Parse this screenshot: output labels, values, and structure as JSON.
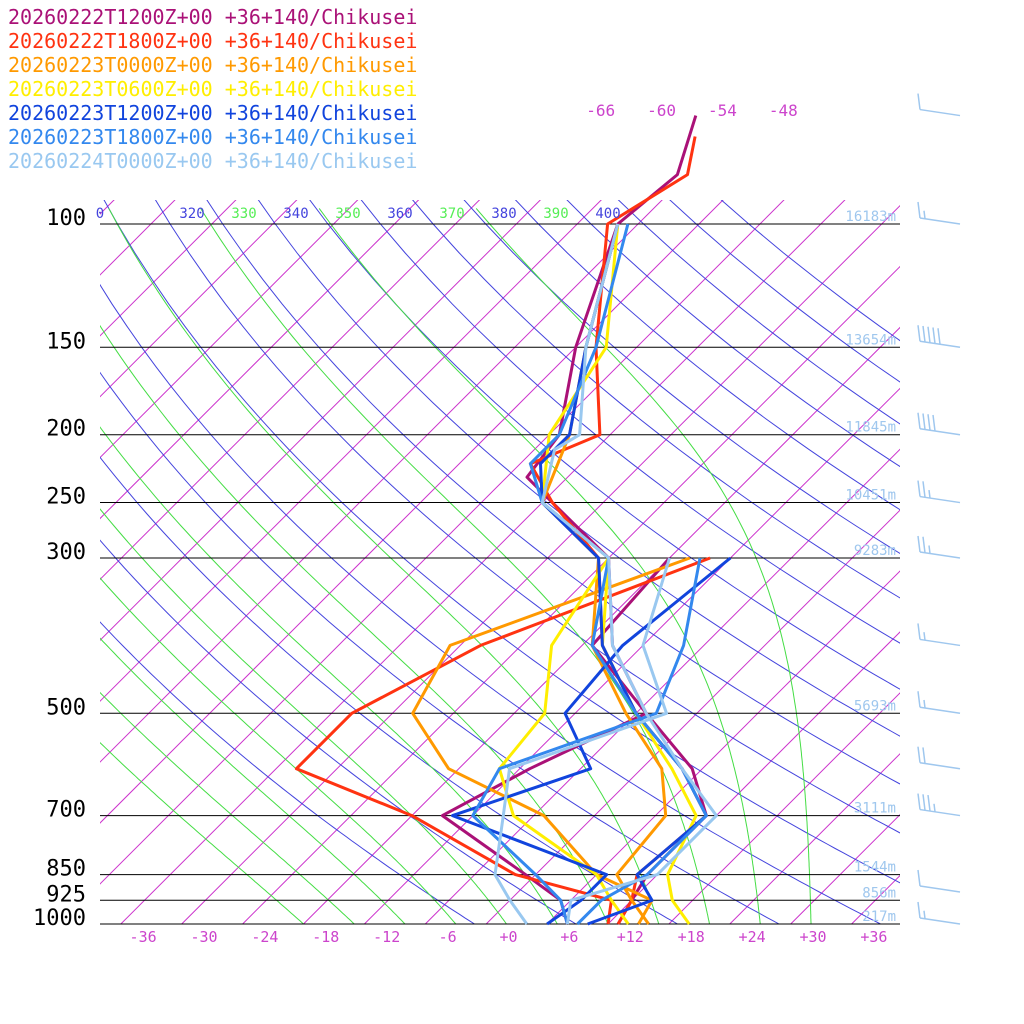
{
  "chart_data": {
    "type": "line",
    "title": "",
    "xlabel": "",
    "ylabel": "",
    "grid": true,
    "legend_position": "top-left",
    "pressure_levels": [
      100,
      150,
      200,
      250,
      300,
      500,
      700,
      850,
      925,
      1000
    ],
    "pressure_labels": [
      "100",
      "150",
      "200",
      "250",
      "300",
      "500",
      "700",
      "850",
      "925",
      "1000"
    ],
    "temperature_ticks": [
      "-36",
      "-30",
      "-24",
      "-18",
      "-12",
      "-6",
      "+0",
      "+6",
      "+12",
      "+18",
      "+24",
      "+30",
      "+36"
    ],
    "isotherm_labels": [
      "-66",
      "-60",
      "-54",
      "-48"
    ],
    "theta_labels": [
      {
        "text": "0",
        "kind": "dry"
      },
      {
        "text": "320",
        "kind": "dry"
      },
      {
        "text": "330",
        "kind": "moist"
      },
      {
        "text": "340",
        "kind": "dry"
      },
      {
        "text": "350",
        "kind": "moist"
      },
      {
        "text": "360",
        "kind": "dry"
      },
      {
        "text": "370",
        "kind": "moist"
      },
      {
        "text": "380",
        "kind": "dry"
      },
      {
        "text": "390",
        "kind": "moist"
      },
      {
        "text": "400",
        "kind": "dry"
      }
    ],
    "height_labels": [
      {
        "p": 100,
        "text": "16183m"
      },
      {
        "p": 150,
        "text": "13654m"
      },
      {
        "p": 200,
        "text": "11845m"
      },
      {
        "p": 250,
        "text": "10451m"
      },
      {
        "p": 300,
        "text": "9283m"
      },
      {
        "p": 500,
        "text": "5693m"
      },
      {
        "p": 700,
        "text": "3111m"
      },
      {
        "p": 850,
        "text": "1544m"
      },
      {
        "p": 925,
        "text": "856m"
      },
      {
        "p": 1000,
        "text": "217m"
      }
    ],
    "series": [
      {
        "name": "20260222T1200Z+00 +36+140/Chikusei",
        "color": "#aa1177",
        "temperature": [
          [
            1000,
            11
          ],
          [
            925,
            10
          ],
          [
            850,
            9
          ],
          [
            700,
            9
          ],
          [
            600,
            3
          ],
          [
            500,
            -7
          ],
          [
            400,
            -17
          ],
          [
            300,
            -26
          ],
          [
            250,
            -37
          ],
          [
            230,
            -42
          ],
          [
            200,
            -43
          ],
          [
            150,
            -50
          ],
          [
            100,
            -58
          ],
          [
            85,
            -57
          ],
          [
            70,
            -61
          ]
        ],
        "dewpoint": [
          [
            1000,
            6
          ],
          [
            925,
            3
          ],
          [
            850,
            -3
          ],
          [
            700,
            -17
          ],
          [
            600,
            -13
          ],
          [
            500,
            -7
          ],
          [
            400,
            -19
          ],
          [
            300,
            -20
          ]
        ]
      },
      {
        "name": "20260222T1800Z+00 +36+140/Chikusei",
        "color": "#ff3311",
        "temperature": [
          [
            1000,
            11
          ],
          [
            925,
            10
          ],
          [
            850,
            8
          ],
          [
            700,
            9
          ],
          [
            600,
            2
          ],
          [
            500,
            -8
          ],
          [
            400,
            -18
          ],
          [
            300,
            -27
          ],
          [
            250,
            -37
          ],
          [
            220,
            -43
          ],
          [
            200,
            -39
          ],
          [
            150,
            -48
          ],
          [
            100,
            -59
          ],
          [
            85,
            -56
          ],
          [
            75,
            -59
          ]
        ],
        "dewpoint": [
          [
            1000,
            10
          ],
          [
            925,
            8
          ],
          [
            850,
            -4
          ],
          [
            700,
            -20
          ],
          [
            600,
            -36
          ],
          [
            500,
            -36
          ],
          [
            400,
            -30
          ],
          [
            300,
            -16
          ]
        ]
      },
      {
        "name": "20260223T0000Z+00 +36+140/Chikusei",
        "color": "#ff9900",
        "temperature": [
          [
            1000,
            14
          ],
          [
            925,
            10
          ],
          [
            850,
            6
          ],
          [
            700,
            5
          ],
          [
            600,
            0
          ],
          [
            500,
            -9
          ],
          [
            400,
            -19
          ],
          [
            300,
            -27
          ],
          [
            250,
            -38
          ],
          [
            200,
            -42
          ],
          [
            150,
            -49
          ],
          [
            100,
            -58
          ]
        ],
        "dewpoint": [
          [
            1000,
            13
          ],
          [
            925,
            12
          ],
          [
            850,
            4
          ],
          [
            700,
            -7
          ],
          [
            600,
            -21
          ],
          [
            500,
            -30
          ],
          [
            400,
            -33
          ],
          [
            300,
            -18
          ]
        ]
      },
      {
        "name": "20260223T0600Z+00 +36+140/Chikusei",
        "color": "#ffee00",
        "temperature": [
          [
            1000,
            18
          ],
          [
            925,
            14
          ],
          [
            850,
            11
          ],
          [
            700,
            8
          ],
          [
            600,
            1
          ],
          [
            500,
            -8
          ],
          [
            400,
            -18
          ],
          [
            300,
            -26
          ],
          [
            250,
            -38
          ],
          [
            200,
            -44
          ],
          [
            150,
            -47
          ],
          [
            100,
            -58
          ]
        ],
        "dewpoint": [
          [
            1000,
            12
          ],
          [
            925,
            8
          ],
          [
            850,
            4
          ],
          [
            700,
            -10
          ],
          [
            600,
            -16
          ],
          [
            500,
            -17
          ],
          [
            400,
            -23
          ],
          [
            300,
            -26
          ]
        ]
      },
      {
        "name": "20260223T1200Z+00 +36+140/Chikusei",
        "color": "#1144dd",
        "temperature": [
          [
            1000,
            8
          ],
          [
            925,
            12
          ],
          [
            850,
            8
          ],
          [
            700,
            9
          ],
          [
            600,
            2
          ],
          [
            500,
            -8
          ],
          [
            400,
            -18
          ],
          [
            300,
            -27
          ],
          [
            250,
            -38
          ],
          [
            220,
            -42
          ],
          [
            200,
            -42
          ],
          [
            150,
            -49
          ],
          [
            100,
            -58
          ]
        ],
        "dewpoint": [
          [
            1000,
            4
          ],
          [
            925,
            5
          ],
          [
            850,
            5
          ],
          [
            700,
            -16
          ],
          [
            600,
            -7
          ],
          [
            500,
            -15
          ],
          [
            400,
            -16
          ],
          [
            300,
            -14
          ]
        ]
      },
      {
        "name": "20260223T1800Z+00 +36+140/Chikusei",
        "color": "#3388ee",
        "temperature": [
          [
            1000,
            7
          ],
          [
            925,
            7
          ],
          [
            850,
            9
          ],
          [
            700,
            9
          ],
          [
            600,
            2
          ],
          [
            500,
            -8
          ],
          [
            400,
            -19
          ],
          [
            300,
            -26
          ],
          [
            250,
            -38
          ],
          [
            220,
            -43
          ],
          [
            200,
            -43
          ],
          [
            150,
            -48
          ],
          [
            100,
            -57
          ]
        ],
        "dewpoint": [
          [
            1000,
            6
          ],
          [
            925,
            3
          ],
          [
            850,
            -2
          ],
          [
            700,
            -14
          ],
          [
            600,
            -16
          ],
          [
            500,
            -6
          ],
          [
            400,
            -10
          ],
          [
            300,
            -17
          ]
        ]
      },
      {
        "name": "20260224T0000Z+00 +36+140/Chikusei",
        "color": "#99c8f0",
        "temperature": [
          [
            1000,
            6
          ],
          [
            925,
            4
          ],
          [
            850,
            10
          ],
          [
            700,
            10
          ],
          [
            600,
            2
          ],
          [
            500,
            -7
          ],
          [
            400,
            -17
          ],
          [
            300,
            -26
          ],
          [
            250,
            -38
          ],
          [
            210,
            -42
          ],
          [
            200,
            -41
          ],
          [
            150,
            -49
          ],
          [
            100,
            -58
          ]
        ],
        "dewpoint": [
          [
            1000,
            2
          ],
          [
            925,
            -2
          ],
          [
            850,
            -6
          ],
          [
            700,
            -11
          ],
          [
            600,
            -15
          ],
          [
            500,
            -5
          ],
          [
            400,
            -14
          ],
          [
            300,
            -20
          ]
        ]
      }
    ],
    "wind_barbs": [
      {
        "p": 70,
        "speed_kt": 10
      },
      {
        "p": 100,
        "speed_kt": 15
      },
      {
        "p": 150,
        "speed_kt": 50
      },
      {
        "p": 200,
        "speed_kt": 40
      },
      {
        "p": 250,
        "speed_kt": 25
      },
      {
        "p": 300,
        "speed_kt": 25
      },
      {
        "p": 400,
        "speed_kt": 15
      },
      {
        "p": 500,
        "speed_kt": 15
      },
      {
        "p": 600,
        "speed_kt": 20
      },
      {
        "p": 700,
        "speed_kt": 35
      },
      {
        "p": 900,
        "speed_kt": 10
      },
      {
        "p": 1000,
        "speed_kt": 15
      }
    ]
  }
}
